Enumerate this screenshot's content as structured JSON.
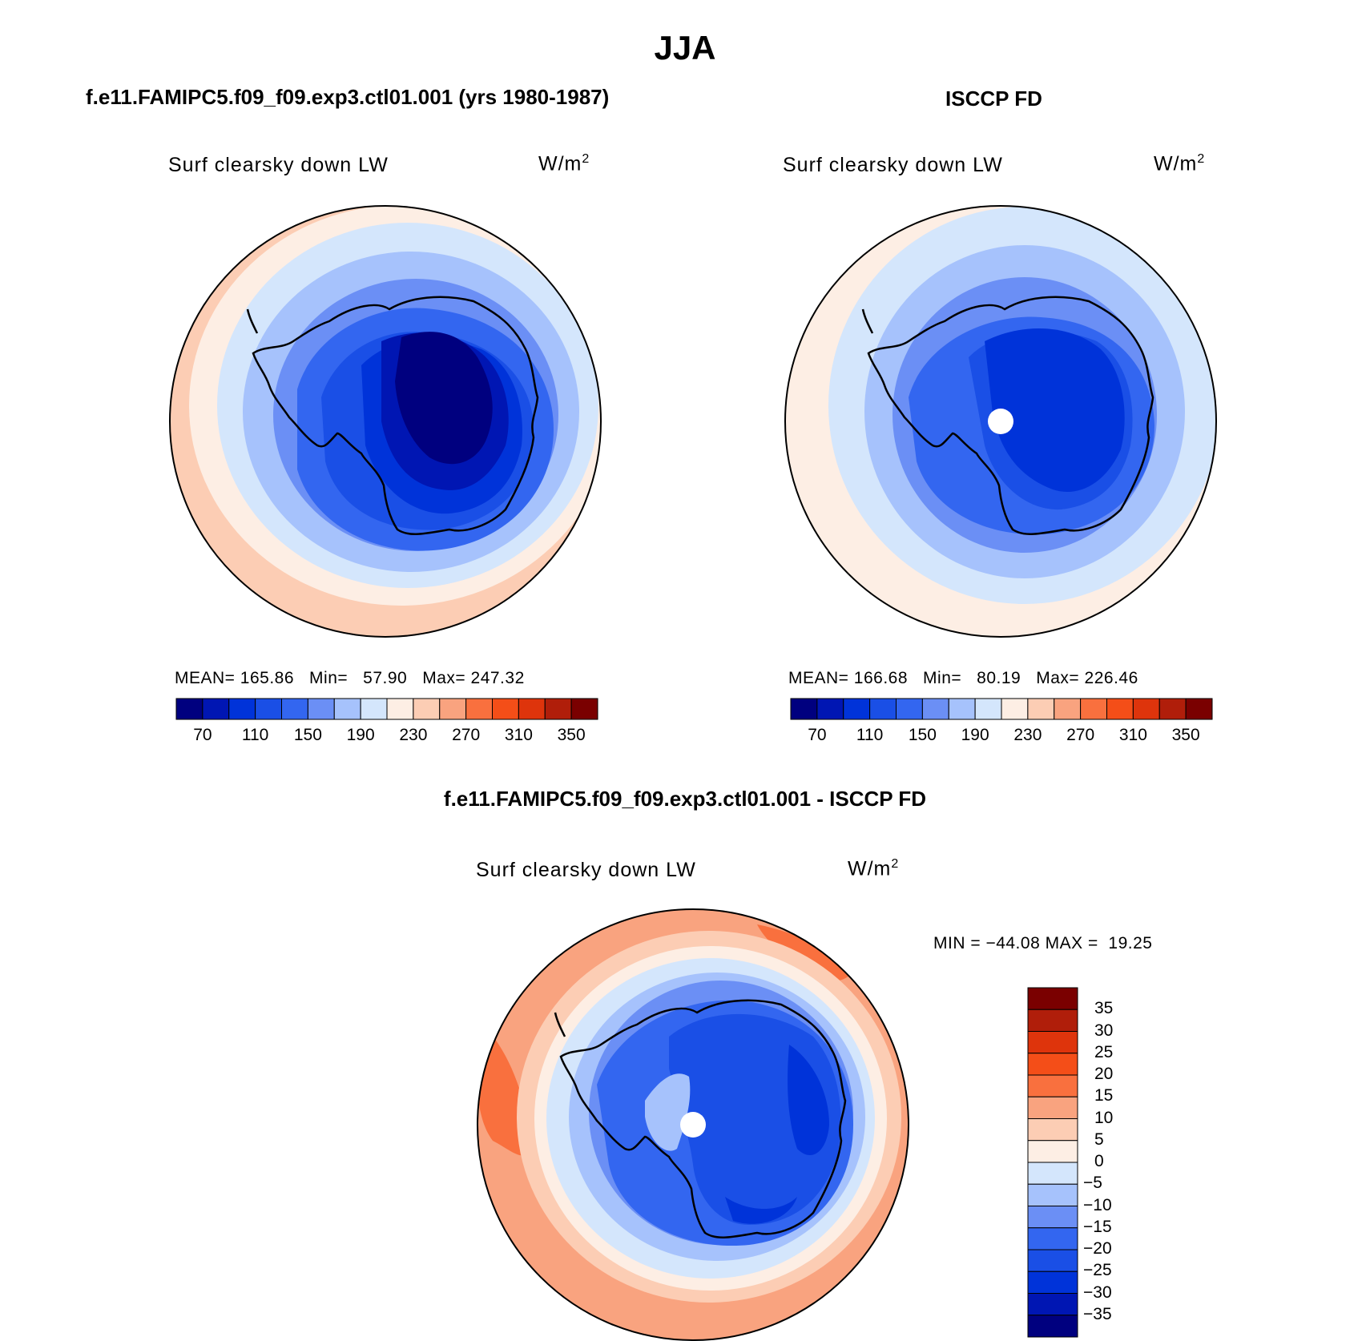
{
  "page": {
    "title": "JJA"
  },
  "colors": {
    "abs_palette": [
      "#00007f",
      "#0016b3",
      "#0033d9",
      "#1a4fe6",
      "#3366f0",
      "#6b8ff5",
      "#a6c2fc",
      "#d4e6fc",
      "#fdeee4",
      "#fccdb4",
      "#f9a37f",
      "#f9703e",
      "#f44e18",
      "#de340c",
      "#b01e0a",
      "#7a0000"
    ],
    "diff_palette": [
      "#00007f",
      "#0016b3",
      "#0033d9",
      "#1a4fe6",
      "#3366f0",
      "#6b8ff5",
      "#a6c2fc",
      "#d4e6fc",
      "#fdeee4",
      "#fccdb4",
      "#f9a37f",
      "#f9703e",
      "#f44e18",
      "#de340c",
      "#b01e0a",
      "#7a0000"
    ],
    "coast": "#000000",
    "pole_hole": "#ffffff"
  },
  "panels": {
    "model": {
      "title": "f.e11.FAMIPC5.f09_f09.exp3.ctl01.001 (yrs 1980-1987)",
      "variable": "Surf clearsky down LW",
      "units_base": "W/m",
      "units_exp": "2",
      "mean_label": "MEAN=",
      "mean_value": "165.86",
      "min_label": "Min=",
      "min_value": "57.90",
      "max_label": "Max=",
      "max_value": "247.32"
    },
    "obs": {
      "title": "ISCCP FD",
      "variable": "Surf clearsky down LW",
      "units_base": "W/m",
      "units_exp": "2",
      "mean_label": "MEAN=",
      "mean_value": "166.68",
      "min_label": "Min=",
      "min_value": "80.19",
      "max_label": "Max=",
      "max_value": "226.46"
    },
    "diff": {
      "title": "f.e11.FAMIPC5.f09_f09.exp3.ctl01.001 - ISCCP FD",
      "variable": "Surf clearsky down LW",
      "units_base": "W/m",
      "units_exp": "2",
      "min_label": "MIN =",
      "min_value": "−44.08",
      "max_label": "MAX =",
      "max_value": "19.25"
    }
  },
  "abs_colorbar": {
    "tick_labels": [
      "70",
      "110",
      "150",
      "190",
      "230",
      "270",
      "310",
      "350"
    ]
  },
  "diff_colorbar": {
    "tick_labels": [
      "35",
      "30",
      "25",
      "20",
      "15",
      "10",
      "5",
      "0",
      "−5",
      "−10",
      "−15",
      "−20",
      "−25",
      "−30",
      "−35"
    ]
  }
}
